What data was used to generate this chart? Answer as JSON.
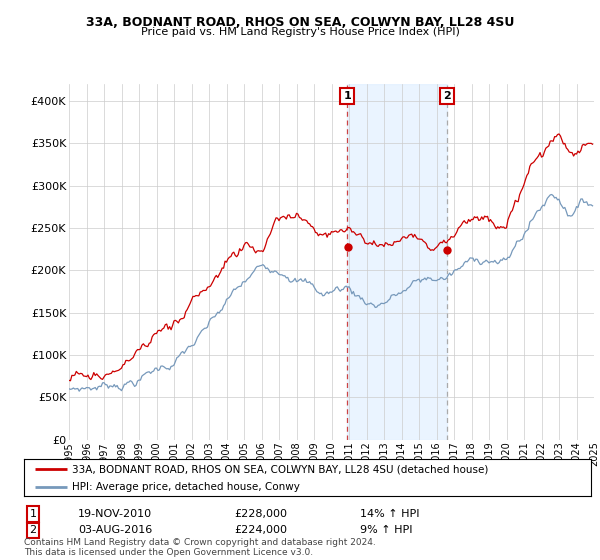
{
  "title": "33A, BODNANT ROAD, RHOS ON SEA, COLWYN BAY, LL28 4SU",
  "subtitle": "Price paid vs. HM Land Registry's House Price Index (HPI)",
  "ylim": [
    0,
    420000
  ],
  "yticks": [
    0,
    50000,
    100000,
    150000,
    200000,
    250000,
    300000,
    350000,
    400000
  ],
  "ytick_labels": [
    "£0",
    "£50K",
    "£100K",
    "£150K",
    "£200K",
    "£250K",
    "£300K",
    "£350K",
    "£400K"
  ],
  "legend_line1": "33A, BODNANT ROAD, RHOS ON SEA, COLWYN BAY, LL28 4SU (detached house)",
  "legend_line2": "HPI: Average price, detached house, Conwy",
  "annotation1_label": "1",
  "annotation1_date": "19-NOV-2010",
  "annotation1_price": "£228,000",
  "annotation1_hpi": "14% ↑ HPI",
  "annotation2_label": "2",
  "annotation2_date": "03-AUG-2016",
  "annotation2_price": "£224,000",
  "annotation2_hpi": "9% ↑ HPI",
  "footer": "Contains HM Land Registry data © Crown copyright and database right 2024.\nThis data is licensed under the Open Government Licence v3.0.",
  "red_color": "#cc0000",
  "blue_color": "#7799bb",
  "vline1_color": "#cc4444",
  "vline2_color": "#aaaaaa",
  "shaded_color": "#ddeeff",
  "annotation_box_color": "#cc0000",
  "sale1_x": 2010.89,
  "sale1_y": 228000,
  "sale2_x": 2016.6,
  "sale2_y": 224000,
  "xlim_start": 1995,
  "xlim_end": 2025
}
